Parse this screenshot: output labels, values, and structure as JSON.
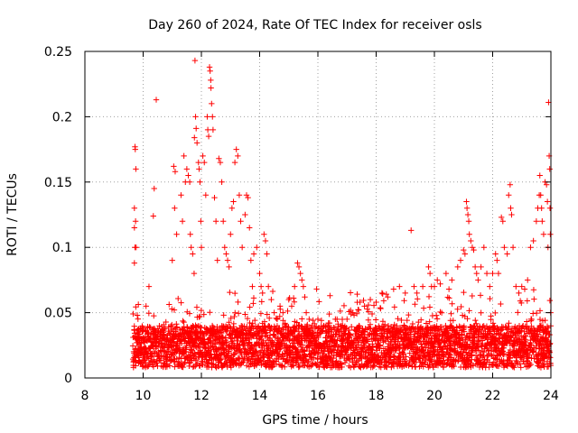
{
  "chart_data": {
    "type": "scatter",
    "title": "Day 260 of 2024, Rate Of TEC Index for receiver osls",
    "xlabel": "GPS time / hours",
    "ylabel": "ROTI / TECUs",
    "xlim": [
      8,
      24
    ],
    "ylim": [
      0,
      0.25
    ],
    "xticks": [
      8,
      10,
      12,
      14,
      16,
      18,
      20,
      22,
      24
    ],
    "xtick_labels": [
      "8",
      "10",
      "12",
      "14",
      "16",
      "18",
      "20",
      "22",
      "24"
    ],
    "yticks": [
      0,
      0.05,
      0.1,
      0.15,
      0.2,
      0.25
    ],
    "ytick_labels": [
      "0",
      "0.05",
      "0.1",
      "0.15",
      "0.2",
      "0.25"
    ],
    "grid": true,
    "marker": "+",
    "color": "#ff0000",
    "series": [
      {
        "name": "ROTI",
        "points": [
          [
            9.72,
            0.177
          ],
          [
            9.73,
            0.175
          ],
          [
            9.75,
            0.16
          ],
          [
            9.7,
            0.13
          ],
          [
            9.74,
            0.12
          ],
          [
            9.7,
            0.115
          ],
          [
            9.72,
            0.1
          ],
          [
            9.76,
            0.1
          ],
          [
            9.7,
            0.088
          ],
          [
            9.8,
            0.048
          ],
          [
            10.45,
            0.213
          ],
          [
            10.38,
            0.145
          ],
          [
            10.35,
            0.124
          ],
          [
            10.2,
            0.07
          ],
          [
            10.1,
            0.055
          ],
          [
            11.05,
            0.162
          ],
          [
            11.1,
            0.158
          ],
          [
            11.08,
            0.13
          ],
          [
            11.15,
            0.11
          ],
          [
            11.0,
            0.09
          ],
          [
            11.3,
            0.14
          ],
          [
            11.35,
            0.12
          ],
          [
            11.4,
            0.17
          ],
          [
            11.45,
            0.15
          ],
          [
            11.5,
            0.16
          ],
          [
            11.55,
            0.155
          ],
          [
            11.6,
            0.15
          ],
          [
            11.62,
            0.11
          ],
          [
            11.65,
            0.1
          ],
          [
            11.7,
            0.095
          ],
          [
            11.75,
            0.08
          ],
          [
            11.78,
            0.243
          ],
          [
            11.8,
            0.2
          ],
          [
            11.82,
            0.191
          ],
          [
            11.76,
            0.184
          ],
          [
            11.85,
            0.18
          ],
          [
            11.9,
            0.165
          ],
          [
            11.92,
            0.16
          ],
          [
            11.95,
            0.15
          ],
          [
            11.98,
            0.12
          ],
          [
            12.0,
            0.1
          ],
          [
            12.05,
            0.17
          ],
          [
            12.1,
            0.165
          ],
          [
            12.15,
            0.14
          ],
          [
            12.2,
            0.2
          ],
          [
            12.22,
            0.19
          ],
          [
            12.25,
            0.185
          ],
          [
            12.28,
            0.238
          ],
          [
            12.3,
            0.235
          ],
          [
            12.32,
            0.228
          ],
          [
            12.33,
            0.222
          ],
          [
            12.35,
            0.21
          ],
          [
            12.38,
            0.2
          ],
          [
            12.4,
            0.19
          ],
          [
            12.45,
            0.138
          ],
          [
            12.5,
            0.12
          ],
          [
            12.55,
            0.09
          ],
          [
            12.6,
            0.168
          ],
          [
            12.65,
            0.165
          ],
          [
            12.7,
            0.15
          ],
          [
            12.75,
            0.12
          ],
          [
            12.8,
            0.1
          ],
          [
            12.85,
            0.095
          ],
          [
            12.9,
            0.09
          ],
          [
            12.95,
            0.085
          ],
          [
            13.0,
            0.11
          ],
          [
            13.05,
            0.13
          ],
          [
            13.1,
            0.135
          ],
          [
            13.15,
            0.165
          ],
          [
            13.2,
            0.175
          ],
          [
            13.25,
            0.17
          ],
          [
            13.3,
            0.14
          ],
          [
            13.35,
            0.12
          ],
          [
            13.4,
            0.1
          ],
          [
            13.5,
            0.125
          ],
          [
            13.55,
            0.14
          ],
          [
            13.6,
            0.138
          ],
          [
            13.65,
            0.115
          ],
          [
            13.7,
            0.09
          ],
          [
            13.75,
            0.07
          ],
          [
            13.8,
            0.095
          ],
          [
            13.9,
            0.1
          ],
          [
            14.0,
            0.08
          ],
          [
            14.05,
            0.07
          ],
          [
            14.1,
            0.065
          ],
          [
            14.15,
            0.11
          ],
          [
            14.2,
            0.105
          ],
          [
            14.25,
            0.095
          ],
          [
            14.3,
            0.07
          ],
          [
            14.4,
            0.06
          ],
          [
            14.5,
            0.05
          ],
          [
            14.6,
            0.045
          ],
          [
            14.7,
            0.055
          ],
          [
            14.8,
            0.05
          ],
          [
            15.0,
            0.06
          ],
          [
            15.1,
            0.055
          ],
          [
            15.2,
            0.07
          ],
          [
            15.3,
            0.088
          ],
          [
            15.35,
            0.085
          ],
          [
            15.4,
            0.08
          ],
          [
            15.45,
            0.075
          ],
          [
            15.5,
            0.07
          ],
          [
            15.55,
            0.062
          ],
          [
            15.6,
            0.05
          ],
          [
            15.7,
            0.045
          ],
          [
            15.8,
            0.04
          ],
          [
            16.0,
            0.045
          ],
          [
            16.2,
            0.04
          ],
          [
            16.4,
            0.042
          ],
          [
            16.6,
            0.045
          ],
          [
            16.8,
            0.04
          ],
          [
            17.0,
            0.045
          ],
          [
            17.2,
            0.05
          ],
          [
            17.4,
            0.052
          ],
          [
            17.6,
            0.055
          ],
          [
            17.8,
            0.06
          ],
          [
            18.0,
            0.058
          ],
          [
            18.2,
            0.065
          ],
          [
            18.4,
            0.062
          ],
          [
            18.6,
            0.068
          ],
          [
            18.8,
            0.07
          ],
          [
            19.0,
            0.065
          ],
          [
            19.2,
            0.113
          ],
          [
            19.3,
            0.07
          ],
          [
            19.4,
            0.065
          ],
          [
            19.6,
            0.07
          ],
          [
            19.8,
            0.085
          ],
          [
            19.85,
            0.08
          ],
          [
            19.9,
            0.07
          ],
          [
            20.0,
            0.07
          ],
          [
            20.1,
            0.075
          ],
          [
            20.2,
            0.072
          ],
          [
            20.4,
            0.08
          ],
          [
            20.5,
            0.068
          ],
          [
            20.6,
            0.075
          ],
          [
            20.8,
            0.085
          ],
          [
            20.9,
            0.09
          ],
          [
            21.0,
            0.098
          ],
          [
            21.05,
            0.095
          ],
          [
            21.1,
            0.135
          ],
          [
            21.12,
            0.13
          ],
          [
            21.15,
            0.125
          ],
          [
            21.18,
            0.12
          ],
          [
            21.2,
            0.11
          ],
          [
            21.25,
            0.105
          ],
          [
            21.3,
            0.1
          ],
          [
            21.35,
            0.098
          ],
          [
            21.4,
            0.085
          ],
          [
            21.45,
            0.08
          ],
          [
            21.5,
            0.075
          ],
          [
            21.6,
            0.085
          ],
          [
            21.7,
            0.1
          ],
          [
            21.8,
            0.08
          ],
          [
            21.9,
            0.07
          ],
          [
            22.0,
            0.08
          ],
          [
            22.1,
            0.095
          ],
          [
            22.15,
            0.09
          ],
          [
            22.2,
            0.08
          ],
          [
            22.3,
            0.123
          ],
          [
            22.35,
            0.12
          ],
          [
            22.4,
            0.1
          ],
          [
            22.5,
            0.095
          ],
          [
            22.55,
            0.14
          ],
          [
            22.6,
            0.148
          ],
          [
            22.62,
            0.13
          ],
          [
            22.65,
            0.125
          ],
          [
            22.7,
            0.1
          ],
          [
            22.8,
            0.07
          ],
          [
            22.9,
            0.065
          ],
          [
            23.0,
            0.07
          ],
          [
            23.1,
            0.068
          ],
          [
            23.2,
            0.075
          ],
          [
            23.3,
            0.1
          ],
          [
            23.4,
            0.105
          ],
          [
            23.5,
            0.12
          ],
          [
            23.55,
            0.13
          ],
          [
            23.6,
            0.14
          ],
          [
            23.62,
            0.155
          ],
          [
            23.65,
            0.14
          ],
          [
            23.68,
            0.13
          ],
          [
            23.7,
            0.12
          ],
          [
            23.75,
            0.11
          ],
          [
            23.8,
            0.15
          ],
          [
            23.85,
            0.148
          ],
          [
            23.88,
            0.135
          ],
          [
            23.9,
            0.1
          ],
          [
            23.92,
            0.211
          ],
          [
            23.94,
            0.17
          ],
          [
            23.96,
            0.16
          ],
          [
            23.97,
            0.13
          ],
          [
            23.98,
            0.11
          ],
          [
            23.99,
            0.05
          ]
        ],
        "dense_band": {
          "x_range": [
            9.65,
            24.0
          ],
          "roti_typical_min": 0.008,
          "roti_typical_max": 0.04
        }
      }
    ]
  }
}
